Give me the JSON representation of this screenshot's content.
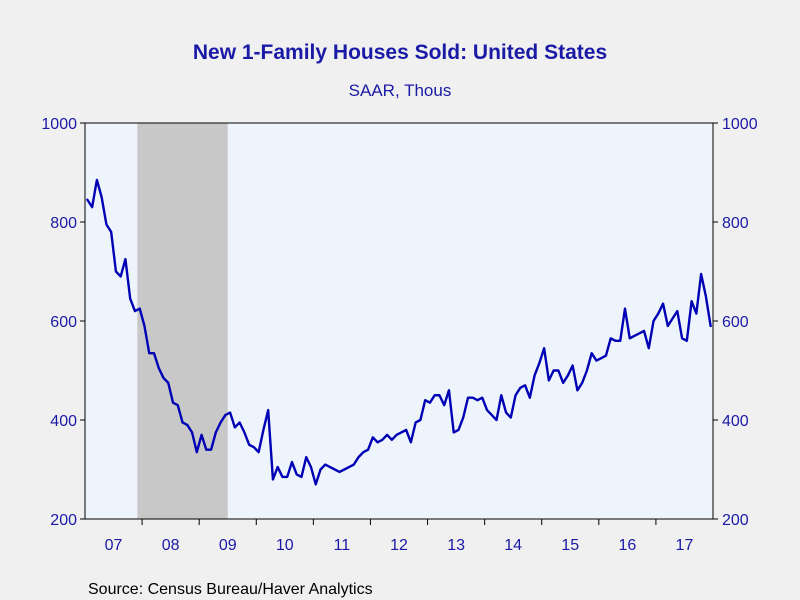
{
  "colors": {
    "background": "#f0f0f0",
    "plot_background": "#eef4fc",
    "recession": "#c8c8c8",
    "series": "#0000b4",
    "text": "#1a1aa6"
  },
  "source": "Source:  Census Bureau/Haver Analytics",
  "chart_data": {
    "type": "line",
    "title": "New 1-Family Houses Sold: United States",
    "subtitle": "SAAR, Thous",
    "ylim": [
      200,
      1000
    ],
    "yticks": [
      200,
      400,
      600,
      800,
      1000
    ],
    "y_tick_labels": [
      "200",
      "400",
      "600",
      "800",
      "1000"
    ],
    "dual_y_axis": true,
    "grid": false,
    "x_range": [
      "2007-01",
      "2017-12"
    ],
    "x_year_labels": [
      "07",
      "08",
      "09",
      "10",
      "11",
      "12",
      "13",
      "14",
      "15",
      "16",
      "17"
    ],
    "recession_shading": [
      {
        "start": "2007-12",
        "end": "2009-06"
      }
    ],
    "series": [
      {
        "start": "2007-01",
        "frequency": "monthly",
        "values": [
          845,
          830,
          885,
          850,
          795,
          780,
          700,
          690,
          725,
          645,
          620,
          625,
          590,
          535,
          535,
          505,
          485,
          475,
          435,
          430,
          395,
          390,
          375,
          335,
          370,
          340,
          340,
          375,
          395,
          410,
          415,
          385,
          395,
          375,
          350,
          345,
          335,
          380,
          420,
          280,
          305,
          285,
          285,
          315,
          290,
          285,
          325,
          305,
          270,
          300,
          310,
          305,
          300,
          295,
          300,
          305,
          310,
          325,
          335,
          340,
          365,
          355,
          360,
          370,
          360,
          370,
          375,
          380,
          355,
          395,
          400,
          440,
          435,
          450,
          450,
          430,
          460,
          375,
          380,
          405,
          445,
          445,
          440,
          445,
          420,
          410,
          400,
          450,
          415,
          405,
          450,
          465,
          470,
          445,
          490,
          515,
          545,
          480,
          500,
          500,
          475,
          490,
          510,
          460,
          475,
          500,
          535,
          520,
          525,
          530,
          565,
          560,
          560,
          625,
          565,
          570,
          575,
          580,
          545,
          600,
          615,
          635,
          590,
          605,
          620,
          565,
          560,
          640,
          615,
          695,
          650,
          590
        ]
      }
    ]
  }
}
